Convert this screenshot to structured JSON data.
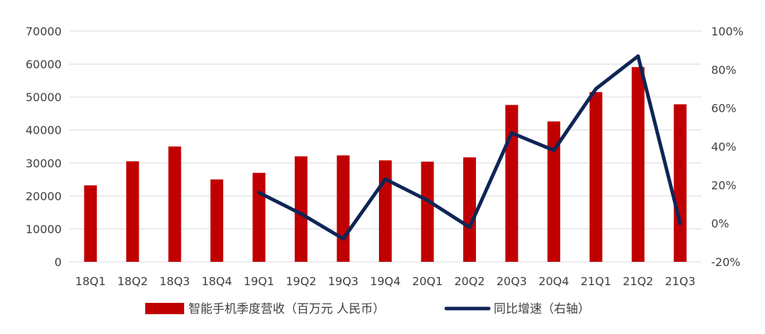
{
  "chart_data": {
    "type": "bar",
    "categories": [
      "18Q1",
      "18Q2",
      "18Q3",
      "18Q4",
      "19Q1",
      "19Q2",
      "19Q3",
      "19Q4",
      "20Q1",
      "20Q2",
      "20Q3",
      "20Q4",
      "21Q1",
      "21Q2",
      "21Q3"
    ],
    "series": [
      {
        "name": "智能手机季度营收（百万元 人民币）",
        "type": "bar",
        "axis": "left",
        "color": "#c00000",
        "values": [
          23200,
          30500,
          35000,
          25000,
          27000,
          32000,
          32300,
          30800,
          30400,
          31700,
          47600,
          42600,
          51500,
          59100,
          47800
        ]
      },
      {
        "name": "同比增速（右轴）",
        "type": "line",
        "axis": "right",
        "color": "#0f2557",
        "values": [
          null,
          null,
          null,
          null,
          16,
          5,
          -8,
          23,
          12,
          -2,
          47,
          38,
          70,
          87,
          0
        ]
      }
    ],
    "y_left": {
      "min": 0,
      "max": 70000,
      "step": 10000,
      "ticks": [
        "0",
        "10000",
        "20000",
        "30000",
        "40000",
        "50000",
        "60000",
        "70000"
      ]
    },
    "y_right": {
      "min": -20,
      "max": 100,
      "step": 20,
      "ticks": [
        "-20%",
        "0%",
        "20%",
        "40%",
        "60%",
        "80%",
        "100%"
      ]
    },
    "grid": true,
    "legend_position": "bottom"
  }
}
